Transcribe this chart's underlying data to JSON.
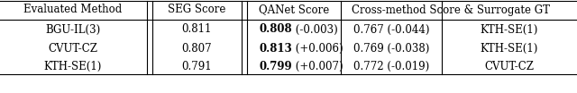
{
  "header": [
    "Evaluated Method",
    "SEG Score",
    "QANet Score",
    "Cross-method Score & Surrogate GT"
  ],
  "rows": [
    {
      "method": "BGU-IL(3)",
      "seg_score": "0.811",
      "qanet_bold": "0.808",
      "qanet_delta": " (-0.003)",
      "cross_score": "0.767 (-0.044)",
      "surrogate": "KTH-SE(1)"
    },
    {
      "method": "CVUT-CZ",
      "seg_score": "0.807",
      "qanet_bold": "0.813",
      "qanet_delta": " (+0.006)",
      "cross_score": "0.769 (-0.038)",
      "surrogate": "KTH-SE(1)"
    },
    {
      "method": "KTH-SE(1)",
      "seg_score": "0.791",
      "qanet_bold": "0.799",
      "qanet_delta": " (+0.007)",
      "cross_score": "0.772 (-0.019)",
      "surrogate": "CVUT-CZ"
    }
  ],
  "line_color": "#000000",
  "bg_color": "#ffffff",
  "text_color": "#000000",
  "fontsize": 8.5
}
